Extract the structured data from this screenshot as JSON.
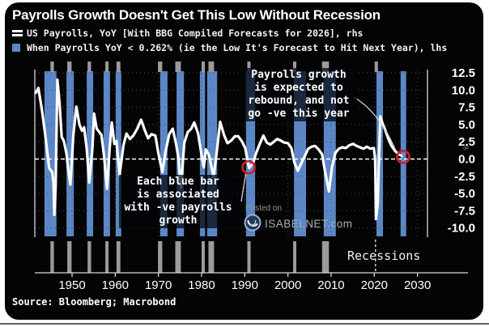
{
  "header": {
    "title": "Payrolls Growth Doesn't Get This Low Without Recession"
  },
  "legend": {
    "items": [
      {
        "icon": "white-double-dash-line",
        "color": "#ffffff",
        "label": "US Payrolls, YoY [With BBG Compiled Forecasts for 2026], rhs"
      },
      {
        "icon": "blue-square",
        "color": "#5b87c6",
        "label": "When Payrolls YoY < 0.262% (ie the Low It's Forecast to Hit Next Year), lhs"
      }
    ]
  },
  "annotations": {
    "rebound_note": {
      "lines": [
        "Payrolls growth",
        "is expected to",
        "rebound, and not",
        "go -ve this year"
      ]
    },
    "blue_bar_note": {
      "lines": [
        "Each blue bar",
        "is associated",
        "with -ve payrolls",
        "growth"
      ]
    }
  },
  "watermark": {
    "posted_on": "Posted on",
    "site": "ISABELNET.com"
  },
  "recessions_label": "Recessions",
  "source": "Source: Bloomberg; Macrobond",
  "zero_axis_marker": "∞",
  "chart_data": {
    "type": "line",
    "title": "Payrolls Growth Doesn't Get This Low Without Recession",
    "plot_bg": "#040404",
    "grid": "dotted",
    "zero_line": "dashed-white",
    "legend_position": "top-left",
    "highlight_color": "#d21f2c",
    "x_axis": {
      "ticks": [
        1950,
        1960,
        1970,
        1980,
        1990,
        2000,
        2010,
        2020,
        2030
      ],
      "range": [
        1941.4,
        2032.4
      ]
    },
    "right_y_axis": {
      "side": "right",
      "units": "percent YoY",
      "ticks": [
        {
          "label": "12.5",
          "value": 12.5
        },
        {
          "label": "10.0",
          "value": 10.0
        },
        {
          "label": "7.5",
          "value": 7.5
        },
        {
          "label": "5.0",
          "value": 5.0
        },
        {
          "label": "2.5",
          "value": 2.5
        },
        {
          "label": "0.0",
          "value": 0.0
        },
        {
          "label": "-2.5",
          "value": -2.5
        },
        {
          "label": "-5.0",
          "value": -5.0
        },
        {
          "label": "-7.5",
          "value": -7.5
        },
        {
          "label": "-10.0",
          "value": -10.0
        }
      ],
      "range": [
        -11.5,
        13.0
      ]
    },
    "series": [
      {
        "name": "US Payrolls, YoY [With BBG Compiled Forecasts for 2026], rhs",
        "type": "line",
        "color": "#ffffff",
        "points": [
          [
            1941.6,
            9.6
          ],
          [
            1942.2,
            10.3
          ],
          [
            1943,
            7.2
          ],
          [
            1943.8,
            3.5
          ],
          [
            1944.4,
            0.3
          ],
          [
            1944.7,
            -1.3
          ],
          [
            1945.4,
            -1.9
          ],
          [
            1945.7,
            -3.5
          ],
          [
            1945.9,
            -8.1
          ],
          [
            1946.2,
            -4
          ],
          [
            1946.6,
            11.5
          ],
          [
            1947.1,
            8.2
          ],
          [
            1947.6,
            3.2
          ],
          [
            1948.1,
            2.6
          ],
          [
            1948.7,
            0.8
          ],
          [
            1949,
            -1
          ],
          [
            1949.6,
            -3.7
          ],
          [
            1950.3,
            3.5
          ],
          [
            1951,
            7.6
          ],
          [
            1951.7,
            5
          ],
          [
            1952.3,
            4.1
          ],
          [
            1952.8,
            4.6
          ],
          [
            1953.4,
            1.5
          ],
          [
            1954,
            -3.4
          ],
          [
            1954.7,
            1.5
          ],
          [
            1955.1,
            6.6
          ],
          [
            1955.7,
            4.4
          ],
          [
            1956.2,
            4
          ],
          [
            1956.8,
            3.5
          ],
          [
            1957.4,
            0.5
          ],
          [
            1958.1,
            -4.3
          ],
          [
            1958.7,
            1.5
          ],
          [
            1959.2,
            5.3
          ],
          [
            1959.8,
            2.2
          ],
          [
            1960.3,
            2.6
          ],
          [
            1961,
            -2.3
          ],
          [
            1961.9,
            2
          ],
          [
            1962.6,
            3.7
          ],
          [
            1963.4,
            2.9
          ],
          [
            1964.2,
            3.4
          ],
          [
            1965.1,
            4.4
          ],
          [
            1966,
            5.7
          ],
          [
            1966.9,
            4.1
          ],
          [
            1967.6,
            3
          ],
          [
            1968.4,
            3.6
          ],
          [
            1969.3,
            3.4
          ],
          [
            1970,
            0.8
          ],
          [
            1970.9,
            -1.9
          ],
          [
            1971.7,
            1.2
          ],
          [
            1972.5,
            3.6
          ],
          [
            1973.3,
            4.4
          ],
          [
            1974.1,
            2.2
          ],
          [
            1974.6,
            0.3
          ],
          [
            1975.2,
            -4.2
          ],
          [
            1976,
            2.4
          ],
          [
            1976.8,
            3.9
          ],
          [
            1977.6,
            4.4
          ],
          [
            1978.3,
            5.3
          ],
          [
            1979.2,
            3.7
          ],
          [
            1980.1,
            0.2
          ],
          [
            1980.5,
            -1.2
          ],
          [
            1981,
            1.4
          ],
          [
            1981.7,
            0.6
          ],
          [
            1982.8,
            -2.6
          ],
          [
            1983.6,
            1.5
          ],
          [
            1984.3,
            5.4
          ],
          [
            1985.2,
            3.5
          ],
          [
            1986,
            2.3
          ],
          [
            1986.9,
            2.7
          ],
          [
            1987.7,
            3.3
          ],
          [
            1988.5,
            3.3
          ],
          [
            1989.3,
            2.6
          ],
          [
            1990.1,
            1.6
          ],
          [
            1991,
            -1.3
          ],
          [
            1991.9,
            -0.6
          ],
          [
            1992.6,
            0.8
          ],
          [
            1993.4,
            2.1
          ],
          [
            1994.3,
            3.4
          ],
          [
            1995.1,
            2.4
          ],
          [
            1995.9,
            2.1
          ],
          [
            1996.7,
            2.5
          ],
          [
            1997.5,
            2.9
          ],
          [
            1998.3,
            2.7
          ],
          [
            1999.1,
            2.4
          ],
          [
            2000,
            2.3
          ],
          [
            2000.8,
            1.6
          ],
          [
            2001.5,
            -0.5
          ],
          [
            2002.3,
            -1.7
          ],
          [
            2003.1,
            -0.6
          ],
          [
            2003.9,
            0.4
          ],
          [
            2004.7,
            1.5
          ],
          [
            2005.5,
            1.8
          ],
          [
            2006.3,
            1.9
          ],
          [
            2007.1,
            1.4
          ],
          [
            2007.9,
            0.7
          ],
          [
            2008.6,
            -1.8
          ],
          [
            2009.5,
            -4.7
          ],
          [
            2010.2,
            -1.2
          ],
          [
            2011,
            0.9
          ],
          [
            2011.8,
            1.5
          ],
          [
            2012.6,
            1.7
          ],
          [
            2013.4,
            1.6
          ],
          [
            2014.2,
            2
          ],
          [
            2015.1,
            2.2
          ],
          [
            2015.9,
            1.9
          ],
          [
            2016.7,
            1.7
          ],
          [
            2017.5,
            1.5
          ],
          [
            2018.3,
            1.8
          ],
          [
            2019.1,
            1.5
          ],
          [
            2019.9,
            1.6
          ],
          [
            2020.2,
            0
          ],
          [
            2020.4,
            -8.7
          ],
          [
            2020.8,
            -6.5
          ],
          [
            2021,
            -1.5
          ],
          [
            2021.4,
            6.2
          ],
          [
            2021.9,
            5.2
          ],
          [
            2022.5,
            4.3
          ],
          [
            2023.2,
            3
          ],
          [
            2024,
            1.9
          ],
          [
            2024.8,
            1.2
          ],
          [
            2025.6,
            0.7
          ],
          [
            2025.9,
            0.6
          ]
        ],
        "forecast_points": [
          [
            2025.9,
            0.6
          ],
          [
            2026.5,
            0.4
          ],
          [
            2027.2,
            0.3
          ]
        ]
      },
      {
        "name": "When Payrolls YoY < 0.262% (ie the Low It's Forecast to Hit Next Year), lhs",
        "type": "bars",
        "color": "#5b87c6",
        "spans": [
          [
            1943.6,
            1946.4
          ],
          [
            1948.7,
            1950.4
          ],
          [
            1953.4,
            1954.9
          ],
          [
            1957.3,
            1958.8
          ],
          [
            1960.1,
            1961.4
          ],
          [
            1970.4,
            1972.1
          ],
          [
            1974.2,
            1975.9
          ],
          [
            1979.6,
            1980.8
          ],
          [
            1981.3,
            1983.6
          ],
          [
            1990.3,
            1992.4
          ],
          [
            2001.4,
            2004.2
          ],
          [
            2008.3,
            2011.1
          ],
          [
            2020.5,
            2022
          ],
          [
            2026.1,
            2027.4
          ]
        ]
      },
      {
        "name": "Recessions",
        "type": "bars",
        "color": "#9b9b9b",
        "spans": [
          [
            1945,
            1945.8
          ],
          [
            1948.9,
            1949.9
          ],
          [
            1953.6,
            1954.4
          ],
          [
            1957.7,
            1958.4
          ],
          [
            1960.3,
            1961.2
          ],
          [
            1969.9,
            1970.9
          ],
          [
            1973.9,
            1975.2
          ],
          [
            1980,
            1980.6
          ],
          [
            1981.6,
            1982.9
          ],
          [
            1990.6,
            1991.2
          ],
          [
            2001.2,
            2001.9
          ],
          [
            2007.9,
            2009.5
          ]
        ],
        "covid": {
          "start": 2020.1,
          "end": 2020.45,
          "style": "dashed-marker"
        }
      }
    ],
    "highlights": [
      {
        "year": 1990.9,
        "value": -1.2
      },
      {
        "year": 2026.7,
        "value": 0.3
      }
    ]
  }
}
